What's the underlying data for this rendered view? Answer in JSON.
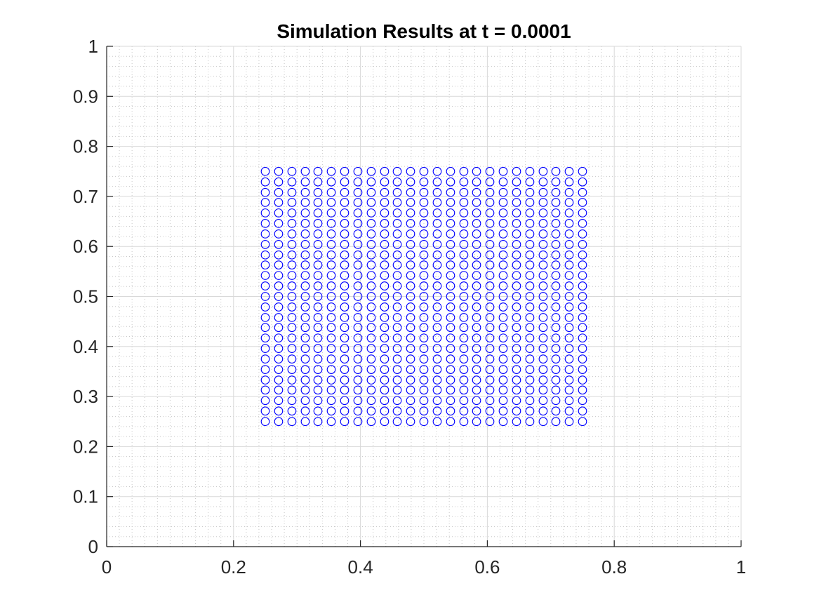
{
  "chart_data": {
    "type": "scatter",
    "title": "Simulation Results at t = 0.0001",
    "xlabel": "",
    "ylabel": "",
    "xlim": [
      0,
      1
    ],
    "ylim": [
      0,
      1
    ],
    "xticks": [
      0,
      0.2,
      0.4,
      0.6,
      0.8,
      1
    ],
    "yticks": [
      0,
      0.1,
      0.2,
      0.3,
      0.4,
      0.5,
      0.6,
      0.7,
      0.8,
      0.9,
      1
    ],
    "xtick_labels": [
      "0",
      "0.2",
      "0.4",
      "0.6",
      "0.8",
      "1"
    ],
    "ytick_labels": [
      "0",
      "0.1",
      "0.2",
      "0.3",
      "0.4",
      "0.5",
      "0.6",
      "0.7",
      "0.8",
      "0.9",
      "1"
    ],
    "grid": "on",
    "minor_grid": "on",
    "marker": "circle-open",
    "marker_color": "#0000ff",
    "series": [
      {
        "x_grid": [
          0.25,
          0.271,
          0.292,
          0.313,
          0.333,
          0.354,
          0.375,
          0.396,
          0.417,
          0.438,
          0.458,
          0.479,
          0.5,
          0.521,
          0.542,
          0.563,
          0.583,
          0.604,
          0.625,
          0.646,
          0.667,
          0.688,
          0.708,
          0.729,
          0.75
        ],
        "y_grid": [
          0.25,
          0.271,
          0.292,
          0.313,
          0.333,
          0.354,
          0.375,
          0.396,
          0.417,
          0.438,
          0.458,
          0.479,
          0.5,
          0.521,
          0.542,
          0.563,
          0.583,
          0.604,
          0.625,
          0.646,
          0.667,
          0.688,
          0.708,
          0.729,
          0.75
        ]
      }
    ]
  }
}
